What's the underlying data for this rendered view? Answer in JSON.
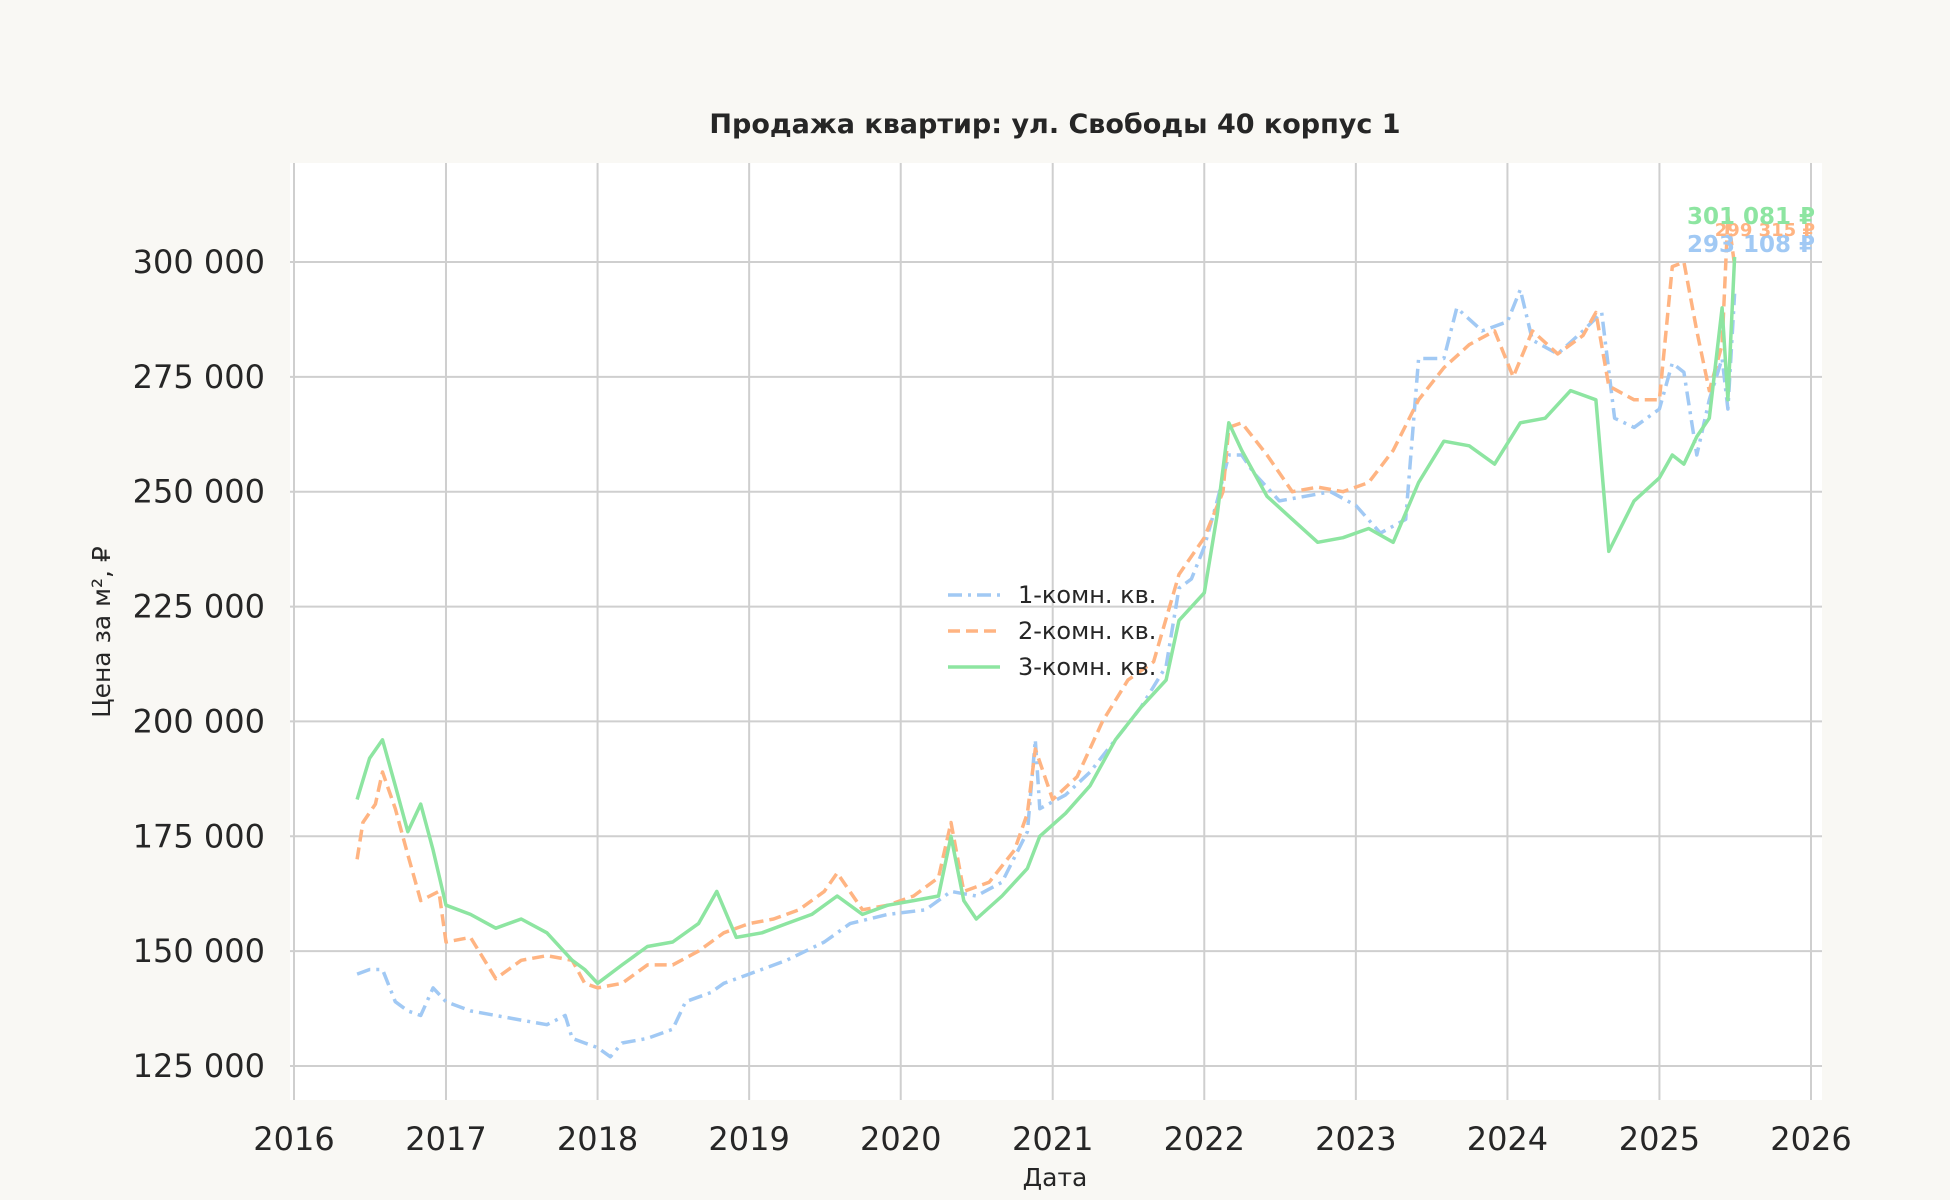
{
  "chart_data": {
    "type": "line",
    "title": "Продажа квартир: ул. Свободы 40 корпус 1",
    "xlabel": "Дата",
    "ylabel": "Цена за м², ₽",
    "x_ticks": [
      "2016",
      "2017",
      "2018",
      "2019",
      "2020",
      "2021",
      "2022",
      "2023",
      "2024",
      "2025",
      "2026"
    ],
    "y_ticks": [
      "125 000",
      "150 000",
      "175 000",
      "200 000",
      "225 000",
      "250 000",
      "275 000",
      "300 000"
    ],
    "xlim": [
      "2016-01-01",
      "2026-01-01"
    ],
    "ylim": [
      120000,
      320000
    ],
    "grid": true,
    "legend_position": "center",
    "series": [
      {
        "name": "1-комн. кв.",
        "color": "#a1c9f4",
        "dash": "dashdot",
        "last_label": "293 108 ₽",
        "points": [
          [
            "2016-06-01",
            145000
          ],
          [
            "2016-07-01",
            146000
          ],
          [
            "2016-08-01",
            146000
          ],
          [
            "2016-09-01",
            139000
          ],
          [
            "2016-10-01",
            137000
          ],
          [
            "2016-11-01",
            136000
          ],
          [
            "2016-12-01",
            142000
          ],
          [
            "2017-01-01",
            139000
          ],
          [
            "2017-03-01",
            137000
          ],
          [
            "2017-05-01",
            136000
          ],
          [
            "2017-07-01",
            135000
          ],
          [
            "2017-09-01",
            134000
          ],
          [
            "2017-10-15",
            136000
          ],
          [
            "2017-11-01",
            131000
          ],
          [
            "2017-12-01",
            130000
          ],
          [
            "2018-01-01",
            129000
          ],
          [
            "2018-02-01",
            127000
          ],
          [
            "2018-03-01",
            130000
          ],
          [
            "2018-05-01",
            131000
          ],
          [
            "2018-07-01",
            133000
          ],
          [
            "2018-08-01",
            139000
          ],
          [
            "2018-10-01",
            141000
          ],
          [
            "2018-11-01",
            143000
          ],
          [
            "2019-01-01",
            145000
          ],
          [
            "2019-04-01",
            148000
          ],
          [
            "2019-07-01",
            152000
          ],
          [
            "2019-09-01",
            156000
          ],
          [
            "2019-12-01",
            158000
          ],
          [
            "2020-03-01",
            159000
          ],
          [
            "2020-05-01",
            163000
          ],
          [
            "2020-07-01",
            162000
          ],
          [
            "2020-09-01",
            165000
          ],
          [
            "2020-11-01",
            176000
          ],
          [
            "2020-11-20",
            196000
          ],
          [
            "2020-12-01",
            181000
          ],
          [
            "2021-02-01",
            184000
          ],
          [
            "2021-04-01",
            189000
          ],
          [
            "2021-06-01",
            196000
          ],
          [
            "2021-08-01",
            203000
          ],
          [
            "2021-10-01",
            212000
          ],
          [
            "2021-11-01",
            229000
          ],
          [
            "2021-12-01",
            231000
          ],
          [
            "2022-01-01",
            238000
          ],
          [
            "2022-02-01",
            248000
          ],
          [
            "2022-03-01",
            258000
          ],
          [
            "2022-04-01",
            258000
          ],
          [
            "2022-05-01",
            254000
          ],
          [
            "2022-07-01",
            248000
          ],
          [
            "2022-09-01",
            249000
          ],
          [
            "2022-11-01",
            250000
          ],
          [
            "2023-01-01",
            247000
          ],
          [
            "2023-03-01",
            241000
          ],
          [
            "2023-05-01",
            244000
          ],
          [
            "2023-06-01",
            279000
          ],
          [
            "2023-08-01",
            279000
          ],
          [
            "2023-09-01",
            290000
          ],
          [
            "2023-11-01",
            285000
          ],
          [
            "2024-01-01",
            287000
          ],
          [
            "2024-02-01",
            294000
          ],
          [
            "2024-03-01",
            283000
          ],
          [
            "2024-05-01",
            280000
          ],
          [
            "2024-07-01",
            285000
          ],
          [
            "2024-08-15",
            289000
          ],
          [
            "2024-09-15",
            266000
          ],
          [
            "2024-11-01",
            264000
          ],
          [
            "2025-01-01",
            268000
          ],
          [
            "2025-02-01",
            278000
          ],
          [
            "2025-03-01",
            276000
          ],
          [
            "2025-04-01",
            258000
          ],
          [
            "2025-05-01",
            270000
          ],
          [
            "2025-06-01",
            279000
          ],
          [
            "2025-06-15",
            268000
          ],
          [
            "2025-07-01",
            293108
          ]
        ]
      },
      {
        "name": "2-комн. кв.",
        "color": "#ffb482",
        "dash": "dashed",
        "last_label": "299 315 ₽",
        "points": [
          [
            "2016-06-01",
            170000
          ],
          [
            "2016-06-15",
            178000
          ],
          [
            "2016-07-15",
            182000
          ],
          [
            "2016-08-01",
            189000
          ],
          [
            "2016-09-01",
            181000
          ],
          [
            "2016-10-01",
            171000
          ],
          [
            "2016-11-01",
            161000
          ],
          [
            "2016-12-15",
            163000
          ],
          [
            "2017-01-01",
            152000
          ],
          [
            "2017-03-01",
            153000
          ],
          [
            "2017-05-01",
            144000
          ],
          [
            "2017-07-01",
            148000
          ],
          [
            "2017-09-01",
            149000
          ],
          [
            "2017-11-01",
            148000
          ],
          [
            "2017-12-01",
            143000
          ],
          [
            "2018-01-01",
            142000
          ],
          [
            "2018-03-01",
            143000
          ],
          [
            "2018-05-01",
            147000
          ],
          [
            "2018-07-01",
            147000
          ],
          [
            "2018-09-01",
            150000
          ],
          [
            "2018-11-01",
            154000
          ],
          [
            "2019-01-01",
            156000
          ],
          [
            "2019-03-01",
            157000
          ],
          [
            "2019-05-01",
            159000
          ],
          [
            "2019-07-01",
            163000
          ],
          [
            "2019-08-01",
            167000
          ],
          [
            "2019-10-01",
            159000
          ],
          [
            "2019-12-01",
            160000
          ],
          [
            "2020-02-01",
            162000
          ],
          [
            "2020-04-01",
            166000
          ],
          [
            "2020-05-01",
            178000
          ],
          [
            "2020-06-01",
            163000
          ],
          [
            "2020-08-01",
            165000
          ],
          [
            "2020-10-01",
            172000
          ],
          [
            "2020-11-01",
            180000
          ],
          [
            "2020-11-20",
            194000
          ],
          [
            "2021-01-01",
            183000
          ],
          [
            "2021-03-01",
            188000
          ],
          [
            "2021-05-01",
            200000
          ],
          [
            "2021-07-01",
            209000
          ],
          [
            "2021-09-01",
            213000
          ],
          [
            "2021-11-01",
            232000
          ],
          [
            "2022-01-01",
            240000
          ],
          [
            "2022-02-15",
            250000
          ],
          [
            "2022-03-01",
            264000
          ],
          [
            "2022-04-01",
            265000
          ],
          [
            "2022-06-01",
            258000
          ],
          [
            "2022-08-01",
            250000
          ],
          [
            "2022-10-01",
            251000
          ],
          [
            "2022-12-01",
            250000
          ],
          [
            "2023-02-01",
            252000
          ],
          [
            "2023-04-01",
            259000
          ],
          [
            "2023-06-01",
            270000
          ],
          [
            "2023-08-01",
            277000
          ],
          [
            "2023-10-01",
            282000
          ],
          [
            "2023-12-01",
            285000
          ],
          [
            "2024-01-15",
            275000
          ],
          [
            "2024-03-01",
            285000
          ],
          [
            "2024-05-01",
            280000
          ],
          [
            "2024-07-01",
            284000
          ],
          [
            "2024-08-01",
            289000
          ],
          [
            "2024-09-01",
            273000
          ],
          [
            "2024-11-01",
            270000
          ],
          [
            "2025-01-01",
            270000
          ],
          [
            "2025-02-01",
            299000
          ],
          [
            "2025-03-01",
            300000
          ],
          [
            "2025-04-01",
            285000
          ],
          [
            "2025-05-01",
            272000
          ],
          [
            "2025-06-01",
            282000
          ],
          [
            "2025-06-15",
            310000
          ],
          [
            "2025-07-01",
            299315
          ]
        ]
      },
      {
        "name": "3-комн. кв.",
        "color": "#8de5a1",
        "dash": "solid",
        "last_label": "301 081 ₽",
        "points": [
          [
            "2016-06-01",
            183000
          ],
          [
            "2016-07-01",
            192000
          ],
          [
            "2016-08-01",
            196000
          ],
          [
            "2016-09-01",
            186000
          ],
          [
            "2016-10-01",
            176000
          ],
          [
            "2016-11-01",
            182000
          ],
          [
            "2016-12-01",
            172000
          ],
          [
            "2017-01-01",
            160000
          ],
          [
            "2017-03-01",
            158000
          ],
          [
            "2017-05-01",
            155000
          ],
          [
            "2017-07-01",
            157000
          ],
          [
            "2017-09-01",
            154000
          ],
          [
            "2017-11-01",
            148000
          ],
          [
            "2017-12-01",
            146000
          ],
          [
            "2018-01-01",
            143000
          ],
          [
            "2018-03-01",
            147000
          ],
          [
            "2018-05-01",
            151000
          ],
          [
            "2018-07-01",
            152000
          ],
          [
            "2018-09-01",
            156000
          ],
          [
            "2018-10-15",
            163000
          ],
          [
            "2018-12-01",
            153000
          ],
          [
            "2019-02-01",
            154000
          ],
          [
            "2019-04-01",
            156000
          ],
          [
            "2019-06-01",
            158000
          ],
          [
            "2019-08-01",
            162000
          ],
          [
            "2019-10-01",
            158000
          ],
          [
            "2019-12-01",
            160000
          ],
          [
            "2020-02-01",
            161000
          ],
          [
            "2020-04-01",
            162000
          ],
          [
            "2020-05-01",
            175000
          ],
          [
            "2020-06-01",
            161000
          ],
          [
            "2020-07-01",
            157000
          ],
          [
            "2020-09-01",
            162000
          ],
          [
            "2020-11-01",
            168000
          ],
          [
            "2020-12-01",
            175000
          ],
          [
            "2021-02-01",
            180000
          ],
          [
            "2021-04-01",
            186000
          ],
          [
            "2021-06-01",
            196000
          ],
          [
            "2021-08-01",
            203000
          ],
          [
            "2021-10-01",
            209000
          ],
          [
            "2021-11-01",
            222000
          ],
          [
            "2022-01-01",
            228000
          ],
          [
            "2022-02-01",
            245000
          ],
          [
            "2022-03-01",
            265000
          ],
          [
            "2022-04-01",
            259000
          ],
          [
            "2022-06-01",
            249000
          ],
          [
            "2022-08-01",
            244000
          ],
          [
            "2022-10-01",
            239000
          ],
          [
            "2022-12-01",
            240000
          ],
          [
            "2023-02-01",
            242000
          ],
          [
            "2023-04-01",
            239000
          ],
          [
            "2023-06-01",
            252000
          ],
          [
            "2023-08-01",
            261000
          ],
          [
            "2023-10-01",
            260000
          ],
          [
            "2023-12-01",
            256000
          ],
          [
            "2024-02-01",
            265000
          ],
          [
            "2024-04-01",
            266000
          ],
          [
            "2024-06-01",
            272000
          ],
          [
            "2024-08-01",
            270000
          ],
          [
            "2024-09-01",
            237000
          ],
          [
            "2024-11-01",
            248000
          ],
          [
            "2025-01-01",
            253000
          ],
          [
            "2025-02-01",
            258000
          ],
          [
            "2025-03-01",
            256000
          ],
          [
            "2025-04-01",
            262000
          ],
          [
            "2025-05-01",
            266000
          ],
          [
            "2025-06-01",
            290000
          ],
          [
            "2025-06-15",
            270000
          ],
          [
            "2025-07-01",
            301081
          ]
        ]
      }
    ]
  }
}
